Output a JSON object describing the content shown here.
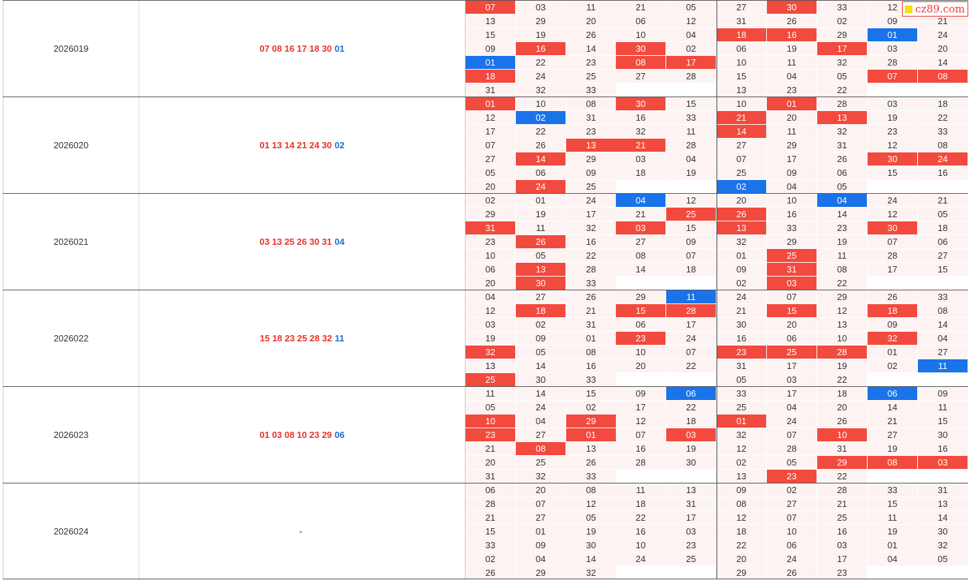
{
  "watermark": "cz89.com",
  "colors": {
    "red": "#f24a3e",
    "blue": "#1a73e8",
    "cell_bg": "#fdf3f3"
  },
  "periods": [
    {
      "id": "2026019",
      "numbers": {
        "red": "07 08 16 17 18 30",
        "blue": "01"
      },
      "grid": [
        [
          "07",
          "03",
          "11",
          "21",
          "05",
          "27",
          "30",
          "33",
          "12",
          ""
        ],
        [
          "13",
          "29",
          "20",
          "06",
          "12",
          "31",
          "26",
          "02",
          "09",
          "21"
        ],
        [
          "15",
          "19",
          "26",
          "10",
          "04",
          "18",
          "16",
          "29",
          "01",
          "24"
        ],
        [
          "09",
          "16",
          "14",
          "30",
          "02",
          "06",
          "19",
          "17",
          "03",
          "20"
        ],
        [
          "01",
          "22",
          "23",
          "08",
          "17",
          "10",
          "11",
          "32",
          "28",
          "14"
        ],
        [
          "18",
          "24",
          "25",
          "27",
          "28",
          "15",
          "04",
          "05",
          "07",
          "08"
        ],
        [
          "31",
          "32",
          "33",
          "",
          "",
          "13",
          "23",
          "22",
          "",
          ""
        ]
      ],
      "hits": [
        [
          "r",
          0,
          0
        ],
        [
          "r",
          0,
          6
        ],
        [
          "r",
          2,
          5
        ],
        [
          "r",
          2,
          6
        ],
        [
          "b",
          2,
          8
        ],
        [
          "r",
          3,
          1
        ],
        [
          "r",
          3,
          3
        ],
        [
          "r",
          3,
          7
        ],
        [
          "b",
          4,
          0
        ],
        [
          "r",
          4,
          3
        ],
        [
          "r",
          4,
          4
        ],
        [
          "r",
          5,
          0
        ],
        [
          "r",
          5,
          8
        ],
        [
          "r",
          5,
          9
        ]
      ]
    },
    {
      "id": "2026020",
      "numbers": {
        "red": "01 13 14 21 24 30",
        "blue": "02"
      },
      "grid": [
        [
          "01",
          "10",
          "08",
          "30",
          "15",
          "10",
          "01",
          "28",
          "03",
          "18"
        ],
        [
          "12",
          "02",
          "31",
          "16",
          "33",
          "21",
          "20",
          "13",
          "19",
          "22"
        ],
        [
          "17",
          "22",
          "23",
          "32",
          "11",
          "14",
          "11",
          "32",
          "23",
          "33"
        ],
        [
          "07",
          "26",
          "13",
          "21",
          "28",
          "27",
          "29",
          "31",
          "12",
          "08"
        ],
        [
          "27",
          "14",
          "29",
          "03",
          "04",
          "07",
          "17",
          "26",
          "30",
          "24"
        ],
        [
          "05",
          "06",
          "09",
          "18",
          "19",
          "25",
          "09",
          "06",
          "15",
          "16"
        ],
        [
          "20",
          "24",
          "25",
          "",
          "",
          "02",
          "04",
          "05",
          "",
          ""
        ]
      ],
      "hits": [
        [
          "r",
          0,
          0
        ],
        [
          "r",
          0,
          3
        ],
        [
          "r",
          0,
          6
        ],
        [
          "b",
          1,
          1
        ],
        [
          "r",
          1,
          5
        ],
        [
          "r",
          1,
          7
        ],
        [
          "r",
          2,
          5
        ],
        [
          "r",
          3,
          2
        ],
        [
          "r",
          3,
          3
        ],
        [
          "r",
          4,
          1
        ],
        [
          "r",
          4,
          8
        ],
        [
          "r",
          4,
          9
        ],
        [
          "r",
          6,
          1
        ],
        [
          "b",
          6,
          5
        ]
      ]
    },
    {
      "id": "2026021",
      "numbers": {
        "red": "03 13 25 26 30 31",
        "blue": "04"
      },
      "grid": [
        [
          "02",
          "01",
          "24",
          "04",
          "12",
          "20",
          "10",
          "04",
          "24",
          "21"
        ],
        [
          "29",
          "19",
          "17",
          "21",
          "25",
          "26",
          "16",
          "14",
          "12",
          "05"
        ],
        [
          "31",
          "11",
          "32",
          "03",
          "15",
          "13",
          "33",
          "23",
          "30",
          "18"
        ],
        [
          "23",
          "26",
          "16",
          "27",
          "09",
          "32",
          "29",
          "19",
          "07",
          "06"
        ],
        [
          "10",
          "05",
          "22",
          "08",
          "07",
          "01",
          "25",
          "11",
          "28",
          "27"
        ],
        [
          "06",
          "13",
          "28",
          "14",
          "18",
          "09",
          "31",
          "08",
          "17",
          "15"
        ],
        [
          "20",
          "30",
          "33",
          "",
          "",
          "02",
          "03",
          "22",
          "",
          ""
        ]
      ],
      "hits": [
        [
          "b",
          0,
          3
        ],
        [
          "b",
          0,
          7
        ],
        [
          "r",
          1,
          4
        ],
        [
          "r",
          1,
          5
        ],
        [
          "r",
          2,
          0
        ],
        [
          "r",
          2,
          3
        ],
        [
          "r",
          2,
          5
        ],
        [
          "r",
          2,
          8
        ],
        [
          "r",
          3,
          1
        ],
        [
          "r",
          4,
          6
        ],
        [
          "r",
          5,
          1
        ],
        [
          "r",
          5,
          6
        ],
        [
          "r",
          6,
          1
        ],
        [
          "r",
          6,
          6
        ]
      ]
    },
    {
      "id": "2026022",
      "numbers": {
        "red": "15 18 23 25 28 32",
        "blue": "11"
      },
      "grid": [
        [
          "04",
          "27",
          "26",
          "29",
          "11",
          "24",
          "07",
          "29",
          "26",
          "33"
        ],
        [
          "12",
          "18",
          "21",
          "15",
          "28",
          "21",
          "15",
          "12",
          "18",
          "08"
        ],
        [
          "03",
          "02",
          "31",
          "06",
          "17",
          "30",
          "20",
          "13",
          "09",
          "14"
        ],
        [
          "19",
          "09",
          "01",
          "23",
          "24",
          "16",
          "06",
          "10",
          "32",
          "04"
        ],
        [
          "32",
          "05",
          "08",
          "10",
          "07",
          "23",
          "25",
          "28",
          "01",
          "27"
        ],
        [
          "13",
          "14",
          "16",
          "20",
          "22",
          "31",
          "17",
          "19",
          "02",
          "11"
        ],
        [
          "25",
          "30",
          "33",
          "",
          "",
          "05",
          "03",
          "22",
          "",
          ""
        ]
      ],
      "hits": [
        [
          "b",
          0,
          4
        ],
        [
          "r",
          1,
          1
        ],
        [
          "r",
          1,
          3
        ],
        [
          "r",
          1,
          4
        ],
        [
          "r",
          1,
          6
        ],
        [
          "r",
          1,
          8
        ],
        [
          "r",
          3,
          3
        ],
        [
          "r",
          3,
          8
        ],
        [
          "r",
          4,
          0
        ],
        [
          "r",
          4,
          5
        ],
        [
          "r",
          4,
          6
        ],
        [
          "r",
          4,
          7
        ],
        [
          "b",
          5,
          9
        ],
        [
          "r",
          6,
          0
        ]
      ]
    },
    {
      "id": "2026023",
      "numbers": {
        "red": "01 03 08 10 23 29",
        "blue": "06"
      },
      "grid": [
        [
          "11",
          "14",
          "15",
          "09",
          "06",
          "33",
          "17",
          "18",
          "06",
          "09"
        ],
        [
          "05",
          "24",
          "02",
          "17",
          "22",
          "25",
          "04",
          "20",
          "14",
          "11"
        ],
        [
          "10",
          "04",
          "29",
          "12",
          "18",
          "01",
          "24",
          "26",
          "21",
          "15"
        ],
        [
          "23",
          "27",
          "01",
          "07",
          "03",
          "32",
          "07",
          "10",
          "27",
          "30"
        ],
        [
          "21",
          "08",
          "13",
          "16",
          "19",
          "12",
          "28",
          "31",
          "19",
          "16"
        ],
        [
          "20",
          "25",
          "26",
          "28",
          "30",
          "02",
          "05",
          "29",
          "08",
          "03"
        ],
        [
          "31",
          "32",
          "33",
          "",
          "",
          "13",
          "23",
          "22",
          "",
          ""
        ]
      ],
      "hits": [
        [
          "b",
          0,
          4
        ],
        [
          "b",
          0,
          8
        ],
        [
          "r",
          2,
          0
        ],
        [
          "r",
          2,
          2
        ],
        [
          "r",
          2,
          5
        ],
        [
          "r",
          3,
          0
        ],
        [
          "r",
          3,
          2
        ],
        [
          "r",
          3,
          4
        ],
        [
          "r",
          3,
          7
        ],
        [
          "r",
          4,
          1
        ],
        [
          "r",
          5,
          7
        ],
        [
          "r",
          5,
          8
        ],
        [
          "r",
          5,
          9
        ],
        [
          "r",
          6,
          6
        ]
      ]
    },
    {
      "id": "2026024",
      "numbers": {
        "red": "-",
        "blue": ""
      },
      "grid": [
        [
          "06",
          "20",
          "08",
          "11",
          "13",
          "09",
          "02",
          "28",
          "33",
          "31"
        ],
        [
          "28",
          "07",
          "12",
          "18",
          "31",
          "08",
          "27",
          "21",
          "15",
          "13"
        ],
        [
          "21",
          "27",
          "05",
          "22",
          "17",
          "12",
          "07",
          "25",
          "11",
          "14"
        ],
        [
          "15",
          "01",
          "19",
          "16",
          "03",
          "18",
          "10",
          "16",
          "19",
          "30"
        ],
        [
          "33",
          "09",
          "30",
          "10",
          "23",
          "22",
          "06",
          "03",
          "01",
          "32"
        ],
        [
          "02",
          "04",
          "14",
          "24",
          "25",
          "20",
          "24",
          "17",
          "04",
          "05"
        ],
        [
          "26",
          "29",
          "32",
          "",
          "",
          "29",
          "26",
          "23",
          "",
          ""
        ]
      ],
      "hits": []
    }
  ]
}
